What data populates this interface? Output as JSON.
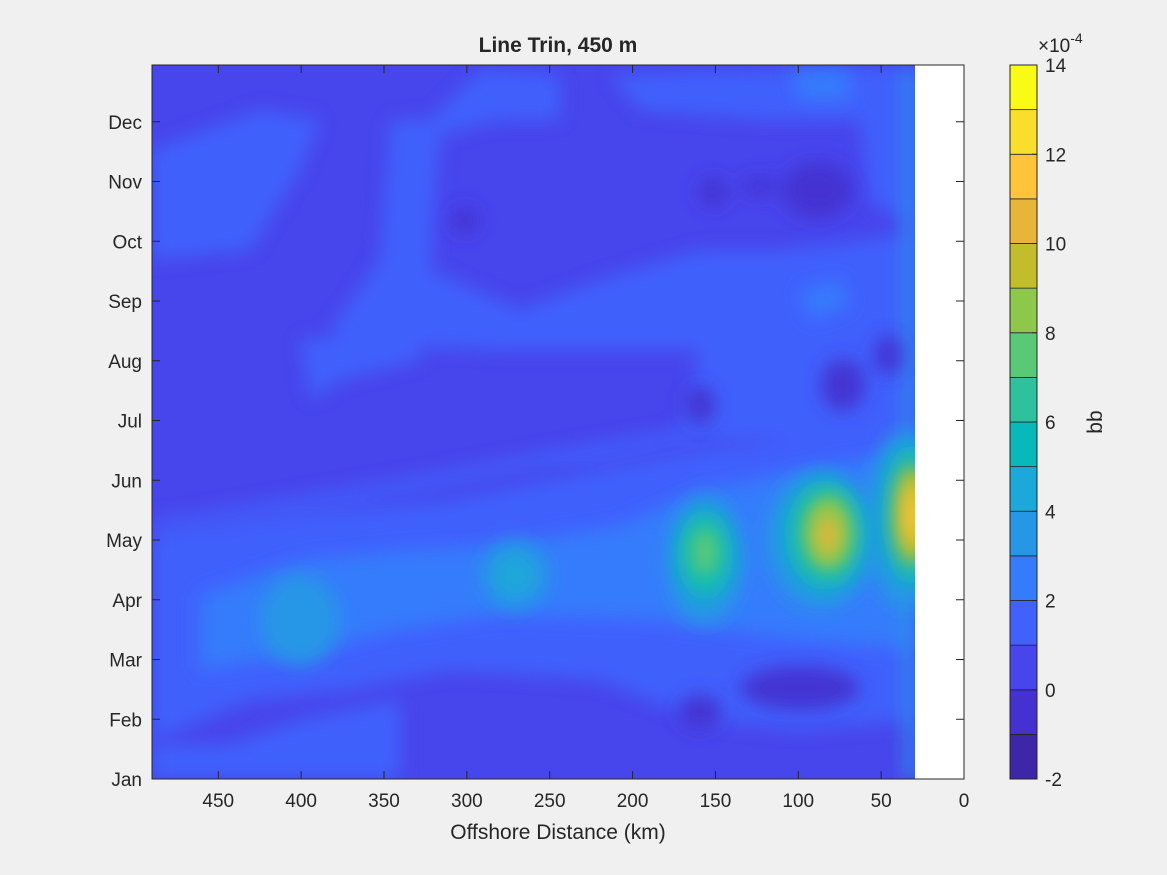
{
  "chart_data": {
    "type": "heatmap",
    "title": "Line Trin, 450 m",
    "xlabel": "Offshore Distance (km)",
    "ylabel": "",
    "x_direction": "reversed",
    "xlim": [
      0,
      490
    ],
    "xticks": [
      450,
      400,
      350,
      300,
      250,
      200,
      150,
      100,
      50,
      0
    ],
    "ylim": [
      0,
      12
    ],
    "yticks": [
      "Jan",
      "Feb",
      "Mar",
      "Apr",
      "May",
      "Jun",
      "Jul",
      "Aug",
      "Sep",
      "Oct",
      "Nov",
      "Dec"
    ],
    "no_data_region_km": [
      0,
      30
    ],
    "colorbar": {
      "label": "bb",
      "exponent": "×10",
      "exponent_power": "-4",
      "range": [
        -2,
        14
      ],
      "tick_values": [
        -2,
        0,
        2,
        4,
        6,
        8,
        10,
        12,
        14
      ],
      "tick_labels": [
        "-2",
        "0",
        "2",
        "4",
        "6",
        "8",
        "10",
        "12",
        "14"
      ],
      "levels": [
        -2,
        -1,
        0,
        1,
        2,
        3,
        4,
        5,
        6,
        7,
        8,
        9,
        10,
        11,
        12,
        13,
        14
      ],
      "colormap": "parula",
      "colors": [
        "#3e26a8",
        "#4530d0",
        "#4745ec",
        "#4061fc",
        "#347cfc",
        "#2696e6",
        "#1aa9d9",
        "#07bab9",
        "#2ec29c",
        "#5ac977",
        "#8dc84c",
        "#c3bd2c",
        "#e8b539",
        "#fec53b",
        "#f7df2b",
        "#f9fb15"
      ]
    },
    "features": [
      {
        "x_km": 30,
        "month": 4.6,
        "value": 12.5
      },
      {
        "x_km": 82,
        "month": 4.4,
        "value": 11.8
      },
      {
        "x_km": 158,
        "month": 4.1,
        "value": 7.5
      },
      {
        "x_km": 268,
        "month": 3.7,
        "value": 6.0
      },
      {
        "x_km": 405,
        "month": 3.3,
        "value": 4.5
      },
      {
        "x_km": 80,
        "month": 10.5,
        "value": -0.8
      },
      {
        "x_km": 80,
        "month": 6.8,
        "value": -0.8
      },
      {
        "x_km": 85,
        "month": 1.9,
        "value": -0.6
      },
      {
        "x_km": 155,
        "month": 1.2,
        "value": -0.5
      }
    ]
  }
}
